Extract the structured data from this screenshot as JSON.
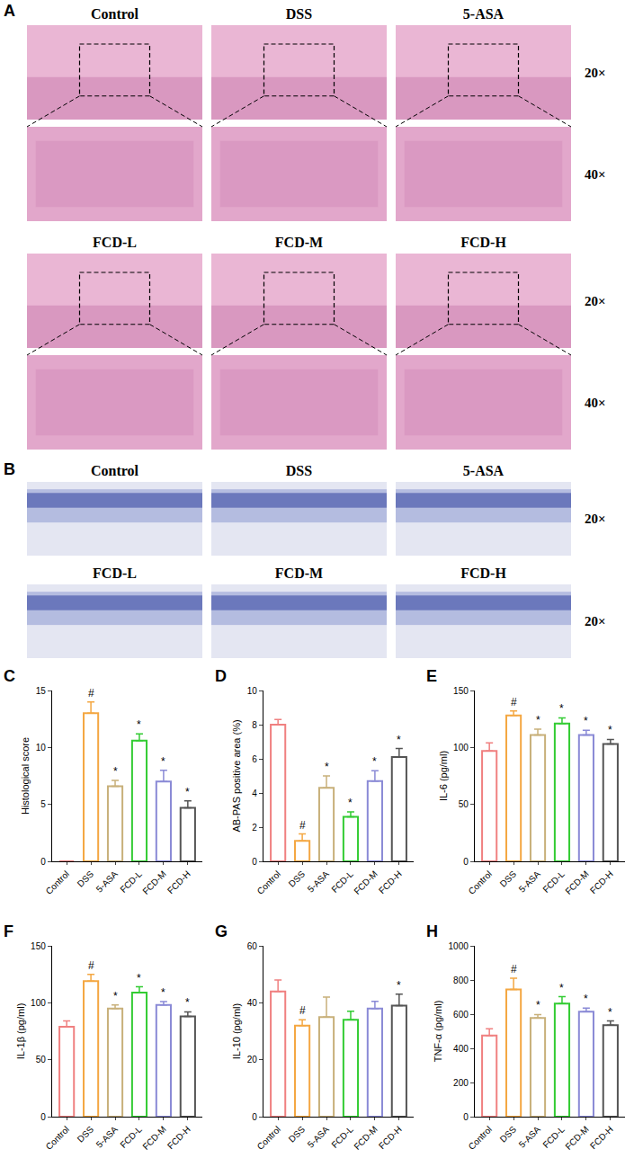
{
  "panels": {
    "A": {
      "panel": "A",
      "groups": [
        [
          "Control",
          "DSS",
          "5-ASA"
        ],
        [
          "FCD-L",
          "FCD-M",
          "FCD-H"
        ]
      ],
      "magnifications": [
        "20×",
        "40×"
      ]
    },
    "B": {
      "panel": "B",
      "groups": [
        [
          "Control",
          "DSS",
          "5-ASA"
        ],
        [
          "FCD-L",
          "FCD-M",
          "FCD-H"
        ]
      ],
      "magnification": "20×"
    }
  },
  "chart_data": [
    {
      "panel": "C",
      "type": "bar",
      "y_label": "Histological score",
      "categories": [
        "Control",
        "DSS",
        "5-ASA",
        "FCD-L",
        "FCD-M",
        "FCD-H"
      ],
      "values": [
        0,
        13,
        6.6,
        10.6,
        7,
        4.7
      ],
      "errors": [
        0,
        1,
        0.5,
        0.6,
        1,
        0.6
      ],
      "marks": [
        null,
        "#",
        "*",
        "*",
        "*",
        "*"
      ],
      "colors": [
        "#f08080",
        "#f4a742",
        "#c8b07a",
        "#33cc33",
        "#8a8ad6",
        "#555555"
      ],
      "ylim": [
        0,
        15
      ],
      "yticks": [
        0,
        5,
        10,
        15
      ],
      "grid": false
    },
    {
      "panel": "D",
      "type": "bar",
      "y_label": "AB-PAS positive area (%)",
      "categories": [
        "Control",
        "DSS",
        "5-ASA",
        "FCD-L",
        "FCD-M",
        "FCD-H"
      ],
      "values": [
        8,
        1.2,
        4.3,
        2.6,
        4.7,
        6.1
      ],
      "errors": [
        0.3,
        0.4,
        0.7,
        0.3,
        0.6,
        0.5
      ],
      "marks": [
        null,
        "#",
        "*",
        "*",
        "*",
        "*"
      ],
      "colors": [
        "#f08080",
        "#f4a742",
        "#c8b07a",
        "#33cc33",
        "#8a8ad6",
        "#555555"
      ],
      "ylim": [
        0,
        10
      ],
      "yticks": [
        0,
        2,
        4,
        6,
        8,
        10
      ],
      "grid": false
    },
    {
      "panel": "E",
      "type": "bar",
      "y_label": "IL-6 (pg/ml)",
      "categories": [
        "Control",
        "DSS",
        "5-ASA",
        "FCD-L",
        "FCD-M",
        "FCD-H"
      ],
      "values": [
        97,
        128,
        111,
        121,
        111,
        103
      ],
      "errors": [
        7,
        4,
        5,
        5,
        4,
        4
      ],
      "marks": [
        null,
        "#",
        "*",
        "*",
        "*",
        "*"
      ],
      "colors": [
        "#f08080",
        "#f4a742",
        "#c8b07a",
        "#33cc33",
        "#8a8ad6",
        "#555555"
      ],
      "ylim": [
        0,
        150
      ],
      "yticks": [
        0,
        50,
        100,
        150
      ],
      "grid": false
    },
    {
      "panel": "F",
      "type": "bar",
      "y_label": "IL-1β (pg/ml)",
      "categories": [
        "Control",
        "DSS",
        "5-ASA",
        "FCD-L",
        "FCD-M",
        "FCD-H"
      ],
      "values": [
        79,
        119,
        95,
        109,
        98,
        88
      ],
      "errors": [
        5,
        6,
        3,
        5,
        3,
        4
      ],
      "marks": [
        null,
        "#",
        "*",
        "*",
        "*",
        "*"
      ],
      "colors": [
        "#f08080",
        "#f4a742",
        "#c8b07a",
        "#33cc33",
        "#8a8ad6",
        "#555555"
      ],
      "ylim": [
        0,
        150
      ],
      "yticks": [
        0,
        50,
        100,
        150
      ],
      "grid": false
    },
    {
      "panel": "G",
      "type": "bar",
      "y_label": "IL-10 (pg/ml)",
      "categories": [
        "Control",
        "DSS",
        "5-ASA",
        "FCD-L",
        "FCD-M",
        "FCD-H"
      ],
      "values": [
        44,
        32,
        35,
        34,
        38,
        39
      ],
      "errors": [
        4,
        2,
        7,
        3,
        2.5,
        4
      ],
      "marks": [
        null,
        "#",
        null,
        null,
        null,
        "*"
      ],
      "colors": [
        "#f08080",
        "#f4a742",
        "#c8b07a",
        "#33cc33",
        "#8a8ad6",
        "#555555"
      ],
      "ylim": [
        0,
        60
      ],
      "yticks": [
        0,
        20,
        40,
        60
      ],
      "grid": false
    },
    {
      "panel": "H",
      "type": "bar",
      "y_label": "TNF-α (pg/ml)",
      "categories": [
        "Control",
        "DSS",
        "5-ASA",
        "FCD-L",
        "FCD-M",
        "FCD-H"
      ],
      "values": [
        475,
        745,
        578,
        662,
        615,
        535
      ],
      "errors": [
        40,
        65,
        20,
        40,
        20,
        25
      ],
      "marks": [
        null,
        "#",
        "*",
        "*",
        "*",
        "*"
      ],
      "colors": [
        "#f08080",
        "#f4a742",
        "#c8b07a",
        "#33cc33",
        "#8a8ad6",
        "#555555"
      ],
      "ylim": [
        0,
        1000
      ],
      "yticks": [
        0,
        200,
        400,
        600,
        800,
        1000
      ],
      "grid": false
    }
  ]
}
